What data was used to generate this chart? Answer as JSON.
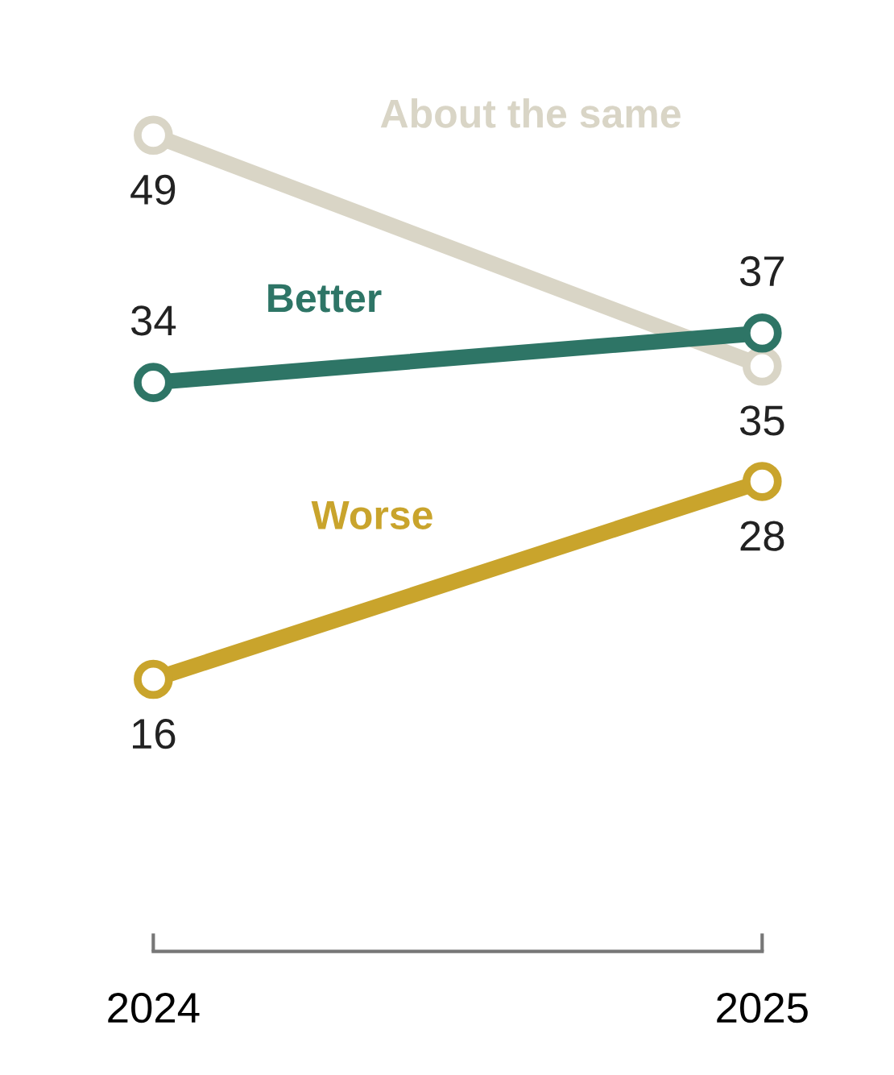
{
  "chart_data": {
    "type": "line",
    "categories": [
      "2024",
      "2025"
    ],
    "series": [
      {
        "name": "About the same",
        "color": "#d9d5c6",
        "values": [
          49,
          35
        ]
      },
      {
        "name": "Better",
        "color": "#2e7566",
        "values": [
          34,
          37
        ]
      },
      {
        "name": "Worse",
        "color": "#c9a42c",
        "values": [
          16,
          28
        ]
      }
    ],
    "tick_labels": "x",
    "data_labels": true,
    "marker": "circle",
    "line_style": "solid",
    "grid": false,
    "legend": false
  }
}
